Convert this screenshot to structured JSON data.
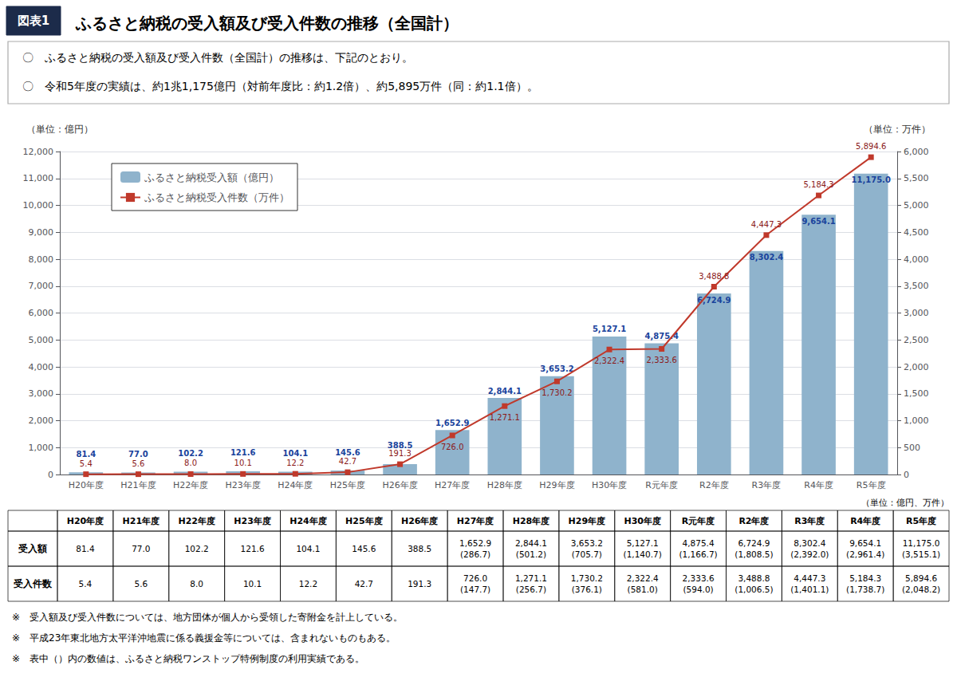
{
  "chart_data": {
    "type": "bar",
    "title": "ふるさと納税の受入額及び受入件数の推移（全国計）",
    "annotations": [
      "図表1"
    ],
    "subtitle": [
      "〇　ふるさと納税の受入額及び受入件数（全国計）の推移は、下記のとおり。",
      "〇　令和5年度の実績は、約1兆1,175億円（対前年度比：約1.2倍）、約5,895万件（同：約1.1倍）。"
    ],
    "categories": [
      "H20年度",
      "H21年度",
      "H22年度",
      "H23年度",
      "H24年度",
      "H25年度",
      "H26年度",
      "H27年度",
      "H28年度",
      "H29年度",
      "H30年度",
      "R元年度",
      "R2年度",
      "R3年度",
      "R4年度",
      "R5年度"
    ],
    "series": [
      {
        "name": "ふるさと納税受入額（億円）",
        "type": "bar",
        "color": "#8fb3cc",
        "values": [
          81.4,
          77.0,
          102.2,
          121.6,
          104.1,
          145.6,
          388.5,
          1652.9,
          2844.1,
          3653.2,
          5127.1,
          4875.4,
          6724.9,
          8302.4,
          9654.1,
          11175.0
        ],
        "value_labels": [
          "81.4",
          "77.0",
          "102.2",
          "121.6",
          "104.1",
          "145.6",
          "388.5",
          "1,652.9",
          "2,844.1",
          "3,653.2",
          "5,127.1",
          "4,875.4",
          "6,724.9",
          "8,302.4",
          "9,654.1",
          "11,175.0"
        ]
      },
      {
        "name": "ふるさと納税受入件数（万件）",
        "type": "line",
        "color": "#c0392b",
        "marker": "square",
        "axis": "y2",
        "values": [
          5.4,
          5.6,
          8.0,
          10.1,
          12.2,
          42.7,
          191.3,
          726.0,
          1271.1,
          1730.2,
          2322.4,
          2333.6,
          3488.8,
          4447.3,
          5184.3,
          5894.6
        ],
        "value_labels": [
          "5.4",
          "5.6",
          "8.0",
          "10.1",
          "12.2",
          "42.7",
          "191.3",
          "726.0",
          "1,271.1",
          "1,730.2",
          "2,322.4",
          "2,333.6",
          "3,488.8",
          "4,447.3",
          "5,184.3",
          "5,894.6"
        ]
      }
    ],
    "ylabel": "（単位：億円）",
    "y2label": "（単位：万件）",
    "ylim": [
      0,
      12000
    ],
    "yticks": [
      0,
      {
        "value": 1000,
        "label": "1,000"
      },
      {
        "value": 2000,
        "label": "2,000"
      },
      {
        "value": 3000,
        "label": "3,000"
      },
      {
        "value": 4000,
        "label": "4,000"
      },
      {
        "value": 5000,
        "label": "5,000"
      },
      {
        "value": 6000,
        "label": "6,000"
      },
      {
        "value": 7000,
        "label": "7,000"
      },
      {
        "value": 8000,
        "label": "8,000"
      },
      {
        "value": 9000,
        "label": "9,000"
      },
      {
        "value": 10000,
        "label": "10,000"
      },
      {
        "value": 11000,
        "label": "11,000"
      },
      {
        "value": 12000,
        "label": "12,000"
      }
    ],
    "y2lim": [
      0,
      6000
    ],
    "y2ticks": [
      0,
      500,
      {
        "value": 1000,
        "label": "1,000"
      },
      {
        "value": 1500,
        "label": "1,500"
      },
      {
        "value": 2000,
        "label": "2,000"
      },
      {
        "value": 2500,
        "label": "2,500"
      },
      {
        "value": 3000,
        "label": "3,000"
      },
      {
        "value": 3500,
        "label": "3,500"
      },
      {
        "value": 4000,
        "label": "4,000"
      },
      {
        "value": 4500,
        "label": "4,500"
      },
      {
        "value": 5000,
        "label": "5,000"
      },
      {
        "value": 5500,
        "label": "5,500"
      },
      {
        "value": 6000,
        "label": "6,000"
      }
    ],
    "grid": true,
    "legend": "upper left",
    "data_labels": true,
    "table": {
      "note": "（単位：億円、万件）",
      "rows": [
        {
          "label": "受入額",
          "cells": [
            "81.4",
            "77.0",
            "102.2",
            "121.6",
            "104.1",
            "145.6",
            "388.5",
            "1,652.9\n(286.7)",
            "2,844.1\n(501.2)",
            "3,653.2\n(705.7)",
            "5,127.1\n(1,140.7)",
            "4,875.4\n(1,166.7)",
            "6,724.9\n(1,808.5)",
            "8,302.4\n(2,392.0)",
            "9,654.1\n(2,961.4)",
            "11,175.0\n(3,515.1)"
          ]
        },
        {
          "label": "受入件数",
          "cells": [
            "5.4",
            "5.6",
            "8.0",
            "10.1",
            "12.2",
            "42.7",
            "191.3",
            "726.0\n(147.7)",
            "1,271.1\n(256.7)",
            "1,730.2\n(376.1)",
            "2,322.4\n(581.0)",
            "2,333.6\n(594.0)",
            "3,488.8\n(1,006.5)",
            "4,447.3\n(1,401.1)",
            "5,184.3\n(1,738.7)",
            "5,894.6\n(2,048.2)"
          ]
        }
      ]
    },
    "footnotes": [
      "※　受入額及び受入件数については、地方団体が個人から受領した寄附金を計上している。",
      "※　平成23年東北地方太平洋沖地震に係る義援金等については、含まれないものもある。",
      "※　表中（）内の数値は、ふるさと納税ワンストップ特例制度の利用実績である。"
    ]
  }
}
